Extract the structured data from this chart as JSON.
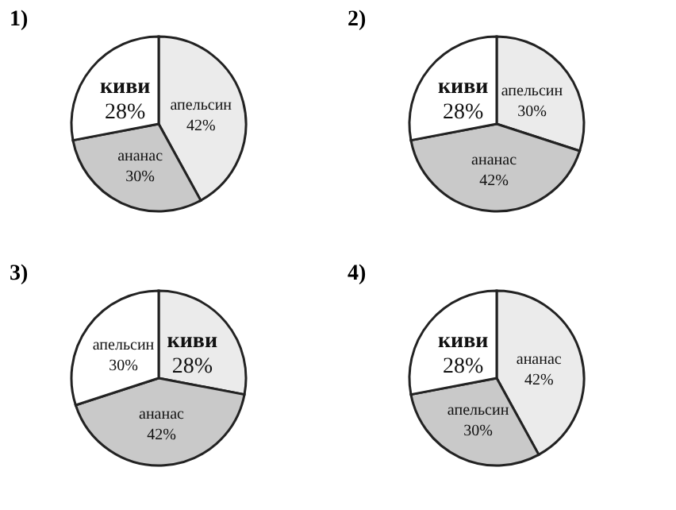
{
  "chart_data": [
    {
      "type": "pie",
      "title": "1)",
      "categories": [
        "апельсин",
        "ананас",
        "киви"
      ],
      "values": [
        42,
        30,
        28
      ],
      "value_labels": [
        "42%",
        "30%",
        "28%"
      ],
      "colors": [
        "#ebebeb",
        "#c9c9c9",
        "#ffffff"
      ]
    },
    {
      "type": "pie",
      "title": "2)",
      "categories": [
        "апельсин",
        "ананас",
        "киви"
      ],
      "values": [
        30,
        42,
        28
      ],
      "value_labels": [
        "30%",
        "42%",
        "28%"
      ],
      "colors": [
        "#ebebeb",
        "#c9c9c9",
        "#ffffff"
      ]
    },
    {
      "type": "pie",
      "title": "3)",
      "categories": [
        "киви",
        "ананас",
        "апельсин"
      ],
      "values": [
        28,
        42,
        30
      ],
      "value_labels": [
        "28%",
        "42%",
        "30%"
      ],
      "colors": [
        "#ebebeb",
        "#c9c9c9",
        "#ffffff"
      ]
    },
    {
      "type": "pie",
      "title": "4)",
      "categories": [
        "ананас",
        "апельсин",
        "киви"
      ],
      "values": [
        42,
        30,
        28
      ],
      "value_labels": [
        "42%",
        "30%",
        "28%"
      ],
      "colors": [
        "#ebebeb",
        "#c9c9c9",
        "#ffffff"
      ]
    }
  ]
}
